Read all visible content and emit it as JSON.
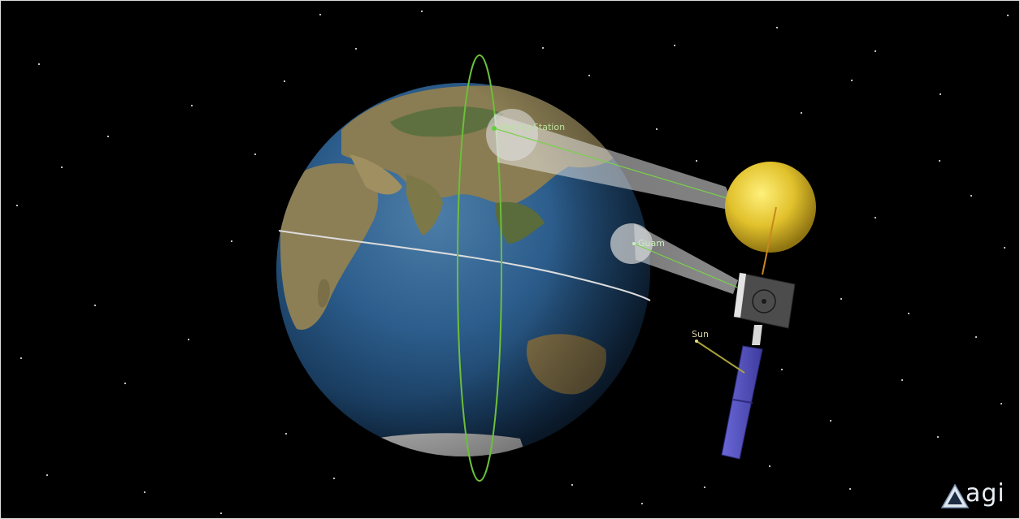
{
  "scene": {
    "labels": {
      "beijing": "Beijing Station",
      "guam": "Guam",
      "sun": "Sun"
    },
    "colors": {
      "space": "#000000",
      "orbit": "#6cbf3a",
      "equator": "#d9d9d9",
      "beam": "#c8c8c8",
      "sensor_ball": "#e0c32a",
      "satellite_body": "#4a4a4a",
      "solar_panel": "#5a57c8",
      "sun_vector": "#a9a23a"
    },
    "objects": [
      "earth",
      "satellite",
      "solar-panel",
      "sensor-sphere",
      "ground-station-beijing",
      "ground-station-guam",
      "sun-vector"
    ]
  },
  "branding": {
    "logo_text": "agi"
  }
}
